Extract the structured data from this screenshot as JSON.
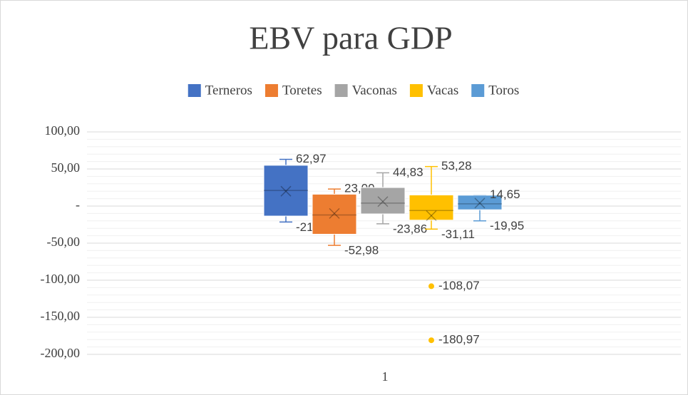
{
  "chart_data": {
    "type": "box",
    "title": "EBV para GDP",
    "categories": [
      "1"
    ],
    "ylim": [
      -200,
      100
    ],
    "yticks": [
      {
        "value": -200,
        "label": "-200,00"
      },
      {
        "value": -150,
        "label": "-150,00"
      },
      {
        "value": -100,
        "label": "-100,00"
      },
      {
        "value": -50,
        "label": "-50,00"
      },
      {
        "value": 0,
        "label": "-"
      },
      {
        "value": 50,
        "label": "50,00"
      },
      {
        "value": 100,
        "label": "100,00"
      }
    ],
    "grid": true,
    "minor_grid_step": 10,
    "legend": "top",
    "series": [
      {
        "name": "Terneros",
        "color": "#4472c4",
        "min": -21.54,
        "q1": -13.5,
        "median": 21,
        "q3": 55,
        "max": 62.97,
        "mean": 20,
        "outliers": [],
        "min_label": "-21,54",
        "max_label": "62,97",
        "outlier_labels": []
      },
      {
        "name": "Toretes",
        "color": "#ed7d31",
        "min": -52.98,
        "q1": -38,
        "median": -12,
        "q3": 16,
        "max": 23.0,
        "mean": -10,
        "outliers": [],
        "min_label": "-52,98",
        "max_label": "23,00",
        "outlier_labels": []
      },
      {
        "name": "Vaconas",
        "color": "#a5a5a5",
        "min": -23.86,
        "q1": -10.6,
        "median": 4,
        "q3": 25,
        "max": 44.83,
        "mean": 6,
        "outliers": [],
        "min_label": "-23,86",
        "max_label": "44,83",
        "outlier_labels": []
      },
      {
        "name": "Vacas",
        "color": "#ffc000",
        "min": -31.11,
        "q1": -19,
        "median": -6,
        "q3": 15,
        "max": 53.28,
        "mean": -13,
        "outliers": [
          -108.07,
          -180.97
        ],
        "min_label": "-31,11",
        "max_label": "53,28",
        "outlier_labels": [
          "-108,07",
          "-180,97"
        ]
      },
      {
        "name": "Toros",
        "color": "#5b9bd5",
        "min": -19.95,
        "q1": -5,
        "median": 3,
        "q3": 14.65,
        "max": 14.65,
        "mean": 4,
        "outliers": [],
        "min_label": "-19,95",
        "max_label": "14,65",
        "outlier_labels": []
      }
    ]
  }
}
